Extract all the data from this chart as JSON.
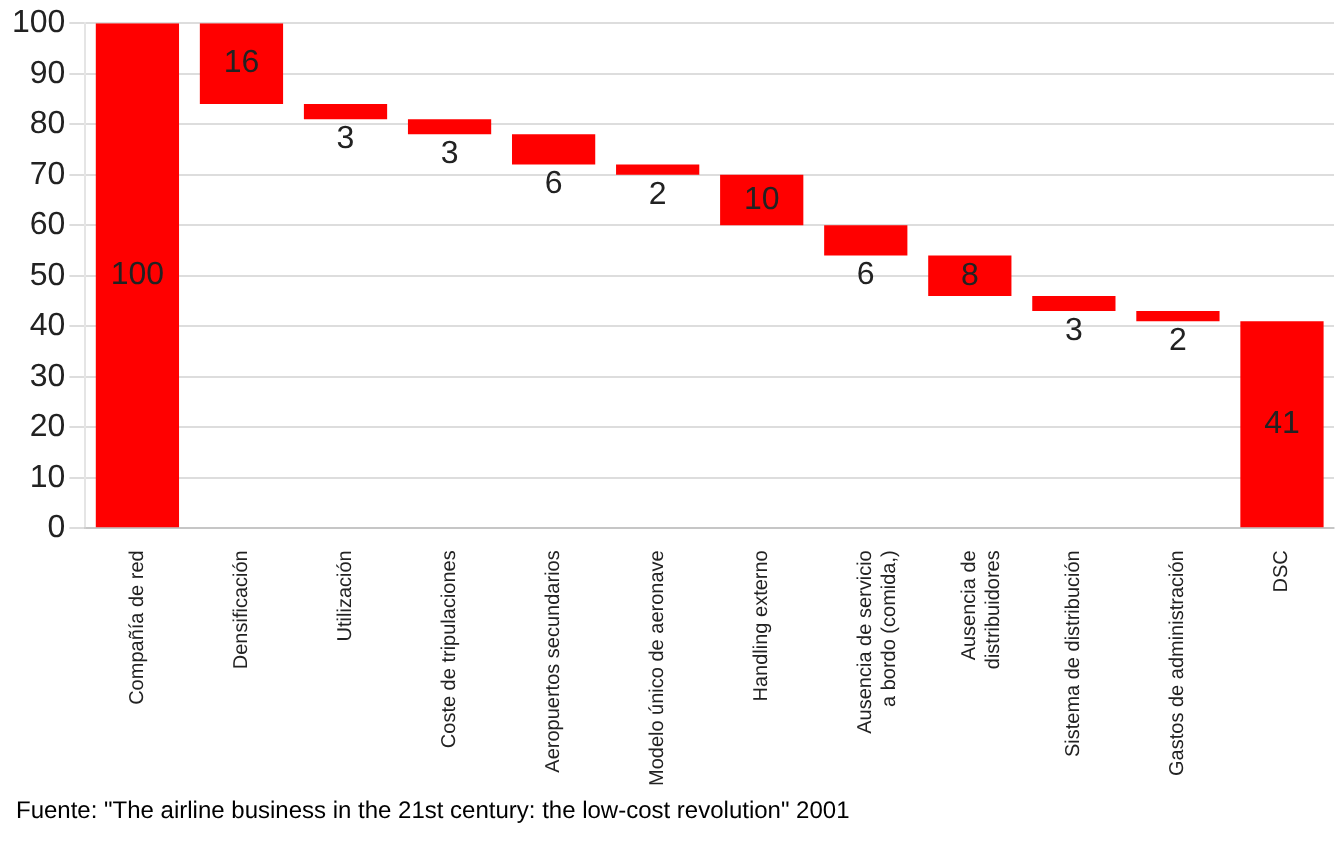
{
  "chart_data": {
    "type": "bar",
    "categories": [
      "Compañía de red",
      "Densificación",
      "Utilización",
      "Coste de tripulaciones",
      "Aeropuertos secundarios",
      "Modelo único de aeronave",
      "Handling externo",
      "Ausencia de servicio a bordo (comida,)",
      "Ausencia de distribuidores",
      "Sistema de distribución",
      "Gastos de administración",
      "DSC"
    ],
    "values": [
      100,
      16,
      3,
      3,
      6,
      2,
      10,
      6,
      8,
      3,
      2,
      41
    ],
    "base": [
      0,
      84,
      81,
      78,
      72,
      70,
      60,
      54,
      46,
      43,
      41,
      0
    ],
    "color": "#ff0000",
    "ylim": [
      0,
      100
    ],
    "yticks": [
      0,
      10,
      20,
      30,
      40,
      50,
      60,
      70,
      80,
      90,
      100
    ],
    "grid": "y",
    "data_labels": true,
    "legend": false,
    "annotations": [
      "Fuente:  \"The airline business in the 21st century: the low-cost revolution\" 2001"
    ]
  }
}
